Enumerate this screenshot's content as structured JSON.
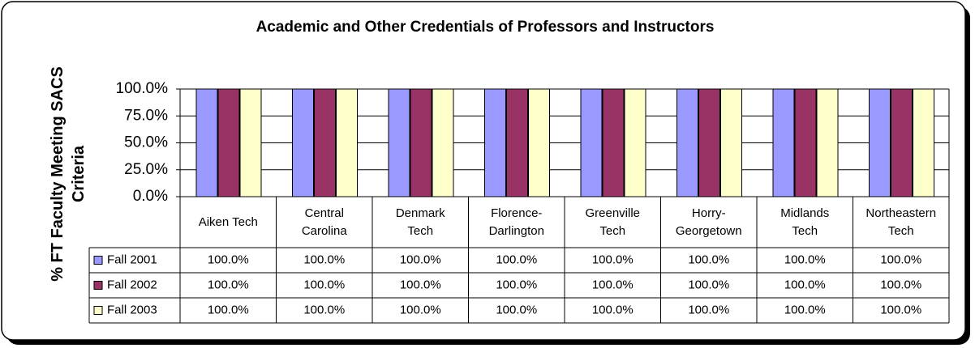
{
  "chart_data": {
    "type": "bar",
    "title": "Academic and Other Credentials of Professors and Instructors",
    "y_label": "% FT Faculty Meeting SACS Criteria",
    "categories": [
      "Aiken Tech",
      "Central Carolina",
      "Denmark Tech",
      "Florence-Darlington",
      "Greenville Tech",
      "Horry-Georgetown",
      "Midlands Tech",
      "Northeastern Tech"
    ],
    "series": [
      {
        "name": "Fall 2001",
        "color": "#9999ff",
        "values": [
          100,
          100,
          100,
          100,
          100,
          100,
          100,
          100
        ],
        "value_labels": [
          "100.0%",
          "100.0%",
          "100.0%",
          "100.0%",
          "100.0%",
          "100.0%",
          "100.0%",
          "100.0%"
        ]
      },
      {
        "name": "Fall 2002",
        "color": "#993366",
        "values": [
          100,
          100,
          100,
          100,
          100,
          100,
          100,
          100
        ],
        "value_labels": [
          "100.0%",
          "100.0%",
          "100.0%",
          "100.0%",
          "100.0%",
          "100.0%",
          "100.0%",
          "100.0%"
        ]
      },
      {
        "name": "Fall 2003",
        "color": "#ffffcc",
        "values": [
          100,
          100,
          100,
          100,
          100,
          100,
          100,
          100
        ],
        "value_labels": [
          "100.0%",
          "100.0%",
          "100.0%",
          "100.0%",
          "100.0%",
          "100.0%",
          "100.0%",
          "100.0%"
        ]
      }
    ],
    "ylim": [
      0,
      100
    ],
    "yticks": [
      {
        "value": 0,
        "label": "0.0%"
      },
      {
        "value": 25,
        "label": "25.0%"
      },
      {
        "value": 50,
        "label": "50.0%"
      },
      {
        "value": 75,
        "label": "75.0%"
      },
      {
        "value": 100,
        "label": "100.0%"
      }
    ],
    "grid": true
  }
}
